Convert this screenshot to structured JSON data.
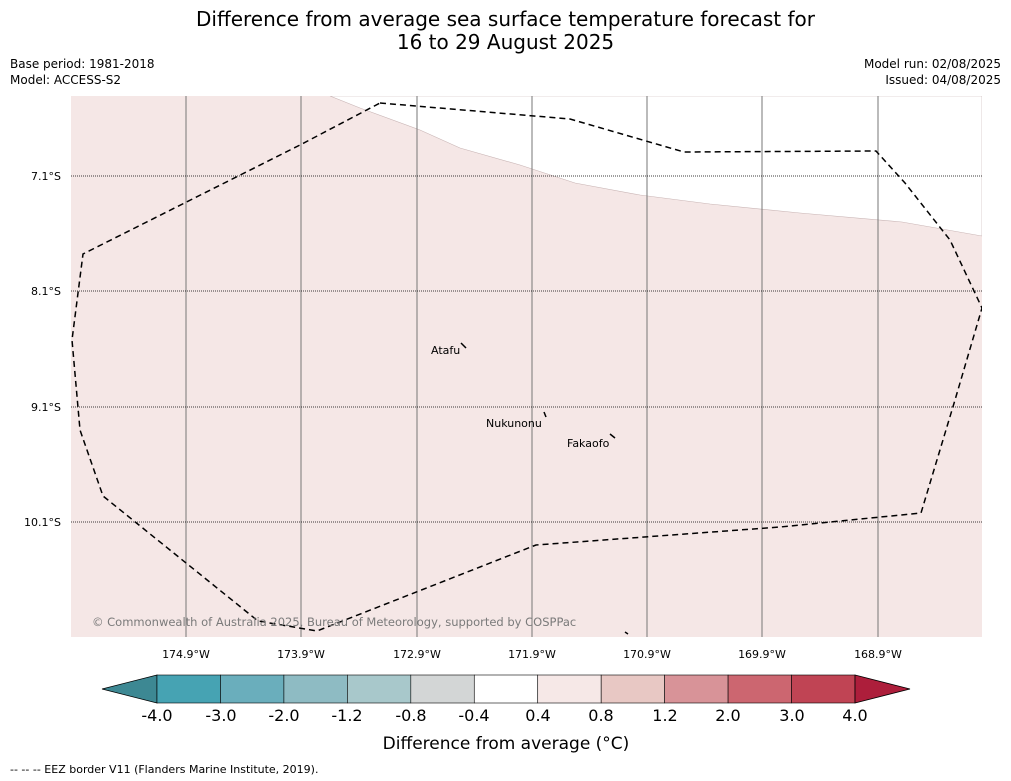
{
  "title": {
    "line1": "Difference from average sea surface temperature forecast for",
    "line2": "16 to 29 August 2025"
  },
  "meta": {
    "base_period": "Base period: 1981-2018",
    "model": "Model: ACCESS-S2",
    "model_run": "Model run: 02/08/2025",
    "issued": "Issued: 04/08/2025"
  },
  "map": {
    "lat_labels": [
      "7.1°S",
      "8.1°S",
      "9.1°S",
      "10.1°S"
    ],
    "lon_labels": [
      "174.9°W",
      "173.9°W",
      "172.9°W",
      "171.9°W",
      "170.9°W",
      "169.9°W",
      "168.9°W"
    ],
    "places": [
      "Atafu",
      "Nukunonu",
      "Fakaofo"
    ],
    "copyright": "© Commonwealth of Australia 2025, Bureau of Meteorology, supported by COSPPac",
    "fill_color": "#f5e7e6",
    "anomaly_category": "0.4 to 0.8"
  },
  "colorbar": {
    "ticks": [
      "-4.0",
      "-3.0",
      "-2.0",
      "-1.2",
      "-0.8",
      "-0.4",
      "0.4",
      "0.8",
      "1.2",
      "2.0",
      "3.0",
      "4.0"
    ],
    "colors": [
      "#3d8893",
      "#46a3b3",
      "#6aaebc",
      "#8ebbc3",
      "#a8c8cb",
      "#d3d6d6",
      "#ffffff",
      "#f6e8e7",
      "#e8c8c4",
      "#d89398",
      "#cc6670",
      "#c04454",
      "#ad1e3b"
    ],
    "label": "Difference from average (°C)"
  },
  "footer": {
    "legend": "--  --  -- EEZ border V11 (Flanders Marine Institute, 2019)."
  }
}
